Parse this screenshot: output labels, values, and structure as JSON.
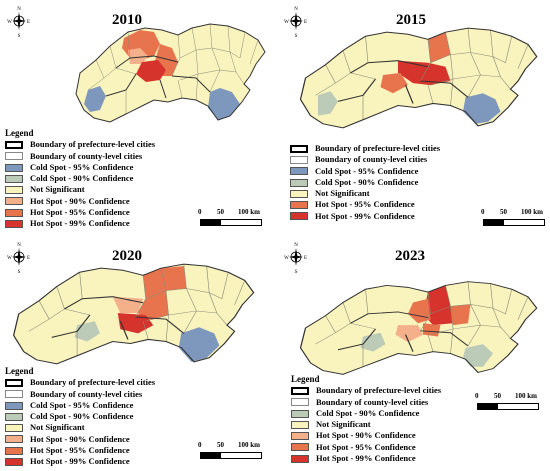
{
  "colors": {
    "not_significant": "#f9f3bd",
    "cold95": "#7e98bd",
    "cold90": "#bccbb7",
    "hot90": "#f4b08b",
    "hot95": "#e8744e",
    "hot99": "#d6332c",
    "boundary": "#555555"
  },
  "compass": {
    "n": "N",
    "s": "S",
    "e": "E",
    "w": "W"
  },
  "legend": {
    "title": "Legend",
    "items": [
      {
        "label": "Boundary of prefecture-level cities",
        "swatch": "boundary-prefecture"
      },
      {
        "label": "Boundary of county-level cities",
        "swatch": "boundary-county"
      },
      {
        "label": "Cold Spot - 95% Confidence",
        "swatch": "cold95"
      },
      {
        "label": "Cold Spot - 90% Confidence",
        "swatch": "cold90"
      },
      {
        "label": "Not Significant",
        "swatch": "not_significant"
      },
      {
        "label": "Hot Spot - 90% Confidence",
        "swatch": "hot90"
      },
      {
        "label": "Hot Spot - 95% Confidence",
        "swatch": "hot95"
      },
      {
        "label": "Hot Spot - 99% Confidence",
        "swatch": "hot99"
      }
    ]
  },
  "scale": {
    "labels": [
      "0",
      "50",
      "100 km"
    ]
  },
  "panels": [
    {
      "year": "2010",
      "legend_items": [
        "Boundary of prefecture-level cities",
        "Boundary of county-level cities",
        "Cold Spot - 95% Confidence",
        "Cold Spot - 90% Confidence",
        "Not Significant",
        "Hot Spot - 90% Confidence",
        "Hot Spot - 95% Confidence",
        "Hot Spot - 99% Confidence"
      ]
    },
    {
      "year": "2015",
      "legend_items": [
        "Boundary of prefecture-level cities",
        "Boundary of county-level cities",
        "Cold Spot - 95% Confidence",
        "Cold Spot - 90% Confidence",
        "Not Significant",
        "Hot Spot - 95% Confidence",
        "Hot Spot - 99% Confidence"
      ]
    },
    {
      "year": "2020",
      "legend_items": [
        "Boundary of prefecture-level cities",
        "Boundary of county-level cities",
        "Cold Spot - 95% Confidence",
        "Cold Spot - 90% Confidence",
        "Not Significant",
        "Hot Spot - 90% Confidence",
        "Hot Spot - 95% Confidence",
        "Hot Spot - 99% Confidence"
      ]
    },
    {
      "year": "2023",
      "legend_items": [
        "Boundary of prefecture-level cities",
        "Boundary of county-level cities",
        "Cold Spot - 90% Confidence",
        "Not Significant",
        "Hot Spot - 90% Confidence",
        "Hot Spot - 95% Confidence",
        "Hot Spot - 99% Confidence"
      ]
    }
  ]
}
